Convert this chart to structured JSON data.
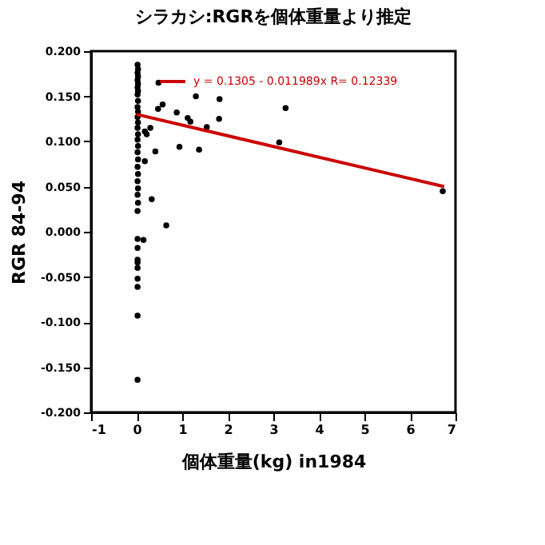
{
  "chart_data": {
    "type": "scatter",
    "title": "シラカシ:RGRを個体重量より推定",
    "xlabel": "個体重量(kg)  in1984",
    "ylabel": "RGR 84-94",
    "xlim": [
      -1,
      7
    ],
    "xticks": [
      -1,
      0,
      1,
      2,
      3,
      4,
      5,
      6,
      7
    ],
    "ylim": [
      -0.2,
      0.2
    ],
    "yticks": [
      {
        "value": -0.2,
        "label": "-0.200"
      },
      {
        "value": -0.15,
        "label": "-0.150"
      },
      {
        "value": -0.1,
        "label": "-0.100"
      },
      {
        "value": -0.05,
        "label": "-0.050"
      },
      {
        "value": 0,
        "label": "0.000"
      },
      {
        "value": 0.05,
        "label": "0.050"
      },
      {
        "value": 0.1,
        "label": "0.100"
      },
      {
        "value": 0.15,
        "label": "0.150"
      },
      {
        "value": 0.2,
        "label": "0.200"
      }
    ],
    "grid": false,
    "legend": "top left",
    "series": [
      {
        "color": "#000000",
        "marker": "circle",
        "x": [
          0.02,
          0.03,
          0.02,
          0.03,
          0.02,
          0.03,
          0.02,
          0.03,
          0.02,
          0.03,
          0.02,
          0.03,
          0.02,
          0.03,
          0.02,
          0.03,
          0.02,
          0.03,
          0.02,
          0.03,
          0.02,
          0.03,
          0.02,
          0.03,
          0.02,
          0.03,
          0.02,
          0.02,
          0.02,
          0.02,
          0.02,
          0.02,
          0.02,
          0.02,
          0.02,
          0.48,
          0.57,
          0.47,
          0.88,
          1.3,
          1.82,
          1.12,
          1.18,
          1.81,
          1.54,
          3.27,
          3.13,
          0.94,
          0.41,
          1.37,
          0.22,
          0.18,
          0.3,
          0.18,
          0.33,
          0.65,
          0.15,
          6.72
        ],
        "values": [
          0.185,
          0.18,
          0.176,
          0.172,
          0.168,
          0.164,
          0.16,
          0.156,
          0.152,
          0.145,
          0.138,
          0.133,
          0.127,
          0.121,
          0.115,
          0.108,
          0.102,
          0.095,
          0.088,
          0.08,
          0.072,
          0.064,
          0.056,
          0.048,
          0.041,
          0.032,
          0.023,
          -0.008,
          -0.018,
          -0.031,
          -0.034,
          -0.04,
          -0.052,
          -0.061,
          -0.093,
          0.165,
          0.141,
          0.136,
          0.132,
          0.15,
          0.147,
          0.126,
          0.122,
          0.125,
          0.116,
          0.137,
          0.099,
          0.094,
          0.089,
          0.091,
          0.108,
          0.111,
          0.115,
          0.078,
          0.036,
          0.007,
          -0.009,
          0.045
        ]
      },
      {
        "color": "#000000",
        "marker": "circle",
        "x": [
          0.02
        ],
        "values": [
          -0.164
        ]
      },
      {
        "name": "y = 0.1305 - 0.011989x   R= 0.12339",
        "type": "line",
        "color": "#cc0000",
        "marker": "none",
        "line_style": "solid",
        "x": [
          0.0,
          6.75
        ],
        "values": [
          0.13,
          0.05
        ]
      }
    ]
  }
}
